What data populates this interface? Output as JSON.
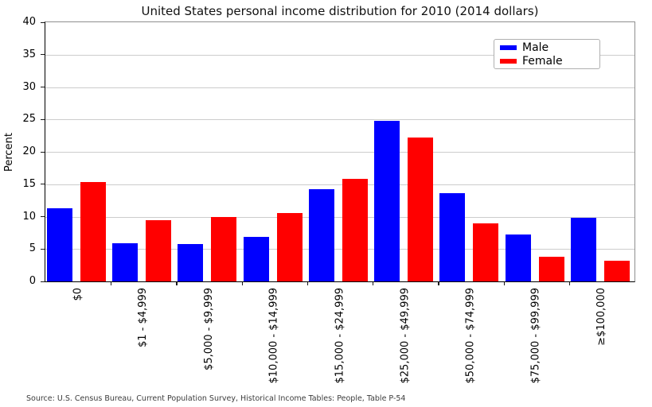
{
  "title": "United States personal income distribution for 2010 (2014 dollars)",
  "source_note": "Source: U.S. Census Bureau, Current Population Survey, Historical Income Tables: People, Table P-54",
  "colors": {
    "male": "#0000ff",
    "female": "#ff0000",
    "gridline": "#cccccc",
    "spine_dark": "#000000",
    "spine_light": "#8f8f8f",
    "legend_border": "#b0b0b0",
    "background": "#ffffff"
  },
  "chart_data": {
    "type": "bar",
    "title": "United States personal income distribution for 2010 (2014 dollars)",
    "xlabel": "",
    "ylabel": "Percent",
    "ylim": [
      0,
      40
    ],
    "ytick_interval": 5,
    "ytick_labels": [
      "0",
      "5",
      "10",
      "15",
      "20",
      "25",
      "30",
      "35",
      "40"
    ],
    "grid": true,
    "legend_position": "upper right",
    "categories": [
      "$0",
      "$1 - $4,999",
      "$5,000 - $9,999",
      "$10,000 - $14,999",
      "$15,000 - $24,999",
      "$25,000 - $49,999",
      "$50,000 - $74,999",
      "$75,000 - $99,999",
      "≥$100,000"
    ],
    "series": [
      {
        "name": "Male",
        "color": "#0000ff",
        "values": [
          11.3,
          5.9,
          5.8,
          6.9,
          14.2,
          24.8,
          13.6,
          7.3,
          9.8
        ]
      },
      {
        "name": "Female",
        "color": "#ff0000",
        "values": [
          15.3,
          9.5,
          10.0,
          10.5,
          15.8,
          22.2,
          9.0,
          3.8,
          3.2
        ]
      }
    ]
  }
}
